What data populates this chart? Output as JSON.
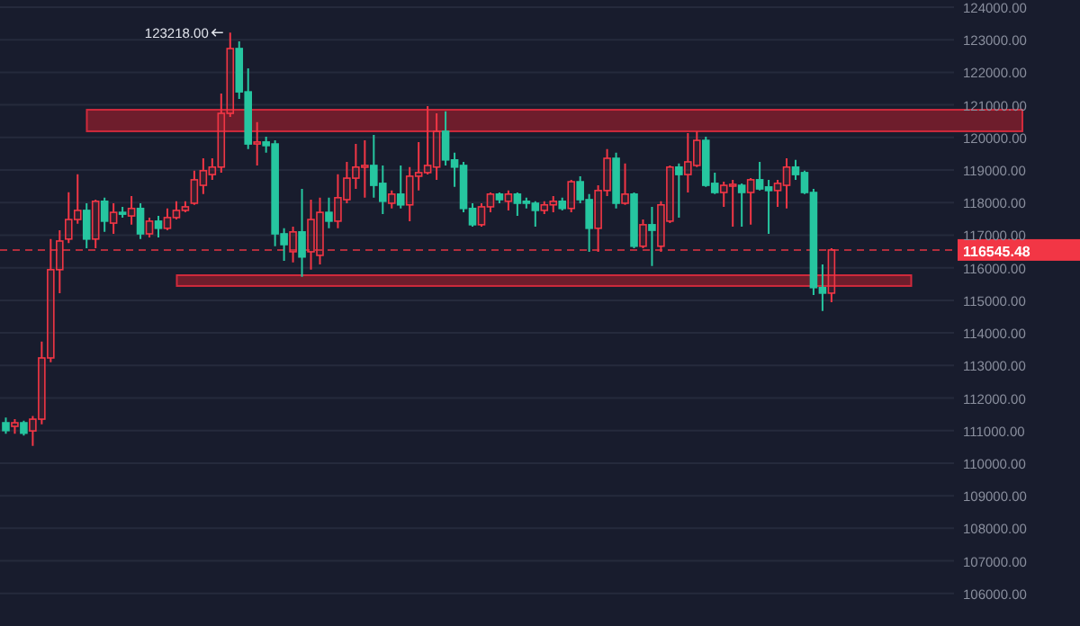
{
  "chart_data": {
    "type": "candlestick",
    "categories": [
      null,
      null,
      null,
      null,
      null,
      null,
      null,
      null,
      null,
      null,
      null,
      null,
      null,
      null,
      null,
      null,
      null,
      null,
      null,
      null,
      null,
      null,
      null,
      null,
      null,
      null,
      null,
      null,
      null,
      null,
      null,
      null,
      null,
      null,
      null,
      null,
      null,
      null,
      null,
      null,
      null,
      null,
      null,
      null,
      null,
      null,
      null,
      null,
      null,
      null,
      null,
      null,
      null,
      null,
      null,
      null,
      null,
      null,
      null,
      null,
      null,
      null,
      null,
      null,
      null,
      null,
      null,
      null,
      null,
      null,
      null,
      null,
      null,
      null,
      null,
      null,
      null,
      null,
      null,
      null,
      null,
      null,
      null,
      null,
      null,
      null,
      null,
      null,
      null,
      null,
      null,
      null,
      null,
      null,
      null,
      null,
      null,
      null,
      null,
      null,
      null,
      null,
      null,
      null,
      null,
      null
    ],
    "ohlc": [
      [
        111240,
        111400,
        110900,
        111000
      ],
      [
        111130,
        111350,
        110900,
        111240
      ],
      [
        111240,
        111300,
        110850,
        110920
      ],
      [
        110990,
        111450,
        110530,
        111350
      ],
      [
        111350,
        113730,
        111190,
        113230
      ],
      [
        113230,
        116880,
        113100,
        115940
      ],
      [
        115940,
        117150,
        115220,
        116820
      ],
      [
        116880,
        118320,
        116760,
        117480
      ],
      [
        117480,
        118870,
        117350,
        117760
      ],
      [
        117760,
        117980,
        116600,
        116880
      ],
      [
        116880,
        118090,
        116600,
        118040
      ],
      [
        118040,
        118150,
        117100,
        117430
      ],
      [
        117370,
        117980,
        117040,
        117700
      ],
      [
        117700,
        117870,
        117540,
        117650
      ],
      [
        117590,
        118200,
        117320,
        117820
      ],
      [
        117820,
        117980,
        116880,
        117040
      ],
      [
        117040,
        117540,
        116930,
        117430
      ],
      [
        117430,
        117590,
        116930,
        117210
      ],
      [
        117210,
        117820,
        117150,
        117540
      ],
      [
        117540,
        118040,
        117480,
        117760
      ],
      [
        117760,
        118040,
        117700,
        117870
      ],
      [
        117980,
        118980,
        117930,
        118700
      ],
      [
        118530,
        119360,
        118260,
        118980
      ],
      [
        118860,
        119360,
        118700,
        119090
      ],
      [
        119090,
        121350,
        118920,
        120740
      ],
      [
        120740,
        123218,
        120630,
        122730
      ],
      [
        122730,
        122950,
        121180,
        121400
      ],
      [
        121400,
        122120,
        119640,
        119800
      ],
      [
        119800,
        120470,
        119140,
        119860
      ],
      [
        119860,
        120020,
        119530,
        119750
      ],
      [
        119800,
        119910,
        116660,
        117040
      ],
      [
        117040,
        117210,
        116210,
        116710
      ],
      [
        116490,
        117260,
        116160,
        117100
      ],
      [
        117100,
        118420,
        115720,
        116330
      ],
      [
        116490,
        118090,
        115940,
        117480
      ],
      [
        116380,
        118150,
        116100,
        117700
      ],
      [
        117700,
        118150,
        117210,
        117430
      ],
      [
        117430,
        118870,
        117210,
        118150
      ],
      [
        118090,
        119250,
        117980,
        118750
      ],
      [
        118750,
        119800,
        118420,
        119090
      ],
      [
        119090,
        119910,
        118150,
        119140
      ],
      [
        119140,
        120080,
        118150,
        118530
      ],
      [
        118590,
        119140,
        117650,
        118040
      ],
      [
        117980,
        118370,
        117820,
        118260
      ],
      [
        118260,
        119140,
        117820,
        117930
      ],
      [
        117930,
        119090,
        117430,
        118810
      ],
      [
        118810,
        119860,
        118370,
        118920
      ],
      [
        118920,
        120960,
        118860,
        119140
      ],
      [
        119090,
        120740,
        118700,
        120190
      ],
      [
        120190,
        120800,
        119140,
        119310
      ],
      [
        119310,
        119530,
        118480,
        119090
      ],
      [
        119140,
        119250,
        117700,
        117820
      ],
      [
        117820,
        117980,
        117260,
        117320
      ],
      [
        117320,
        117980,
        117260,
        117870
      ],
      [
        117870,
        118310,
        117700,
        118260
      ],
      [
        118260,
        118310,
        117980,
        118090
      ],
      [
        118040,
        118370,
        117760,
        118260
      ],
      [
        118260,
        118310,
        117590,
        117980
      ],
      [
        118040,
        118150,
        117820,
        117980
      ],
      [
        117980,
        118040,
        117260,
        117760
      ],
      [
        117760,
        118040,
        117650,
        117930
      ],
      [
        117930,
        118200,
        117700,
        118040
      ],
      [
        118040,
        118150,
        117760,
        117820
      ],
      [
        117820,
        118700,
        117700,
        118640
      ],
      [
        118640,
        118810,
        117980,
        118090
      ],
      [
        118090,
        118260,
        116490,
        117210
      ],
      [
        117210,
        118530,
        116490,
        118370
      ],
      [
        118370,
        119640,
        118200,
        119360
      ],
      [
        119360,
        119530,
        117820,
        117980
      ],
      [
        117980,
        119200,
        117930,
        118260
      ],
      [
        118260,
        118310,
        116600,
        116660
      ],
      [
        116660,
        117480,
        116600,
        117320
      ],
      [
        117320,
        117870,
        116050,
        117150
      ],
      [
        116660,
        118040,
        116490,
        117930
      ],
      [
        117430,
        119140,
        117370,
        119090
      ],
      [
        119090,
        119200,
        117540,
        118860
      ],
      [
        118860,
        120130,
        118310,
        119250
      ],
      [
        119140,
        120190,
        119090,
        119910
      ],
      [
        119910,
        120020,
        118480,
        118530
      ],
      [
        118590,
        118920,
        118260,
        118310
      ],
      [
        118310,
        118640,
        117870,
        118530
      ],
      [
        118530,
        118700,
        117260,
        118560
      ],
      [
        118530,
        118590,
        117260,
        118310
      ],
      [
        118310,
        118750,
        117320,
        118700
      ],
      [
        118700,
        119250,
        118370,
        118420
      ],
      [
        118480,
        118700,
        117040,
        118370
      ],
      [
        118370,
        118700,
        117870,
        118590
      ],
      [
        118530,
        119360,
        117820,
        119090
      ],
      [
        119090,
        119310,
        118700,
        118860
      ],
      [
        118920,
        118980,
        118260,
        118310
      ],
      [
        118310,
        118420,
        115160,
        115390
      ],
      [
        115390,
        116100,
        114670,
        115220
      ],
      [
        115220,
        116600,
        114940,
        116545
      ],
      null,
      null,
      null,
      null,
      null,
      null,
      null,
      null,
      null,
      null,
      null,
      null,
      null
    ],
    "colors": [
      "#26c6a0",
      "#f23645",
      "#26c6a0",
      "#f23645",
      "#f23645",
      "#f23645",
      "#f23645",
      "#f23645",
      "#f23645",
      "#26c6a0",
      "#f23645",
      "#26c6a0",
      "#f23645",
      "#26c6a0",
      "#f23645",
      "#26c6a0",
      "#f23645",
      "#26c6a0",
      "#f23645",
      "#f23645",
      "#f23645",
      "#f23645",
      "#f23645",
      "#f23645",
      "#f23645",
      "#f23645",
      "#26c6a0",
      "#26c6a0",
      "#f23645",
      "#26c6a0",
      "#26c6a0",
      "#26c6a0",
      "#f23645",
      "#26c6a0",
      "#f23645",
      "#f23645",
      "#26c6a0",
      "#f23645",
      "#f23645",
      "#f23645",
      "#f23645",
      "#26c6a0",
      "#26c6a0",
      "#f23645",
      "#26c6a0",
      "#f23645",
      "#f23645",
      "#f23645",
      "#f23645",
      "#26c6a0",
      "#26c6a0",
      "#26c6a0",
      "#26c6a0",
      "#f23645",
      "#f23645",
      "#26c6a0",
      "#f23645",
      "#26c6a0",
      "#26c6a0",
      "#26c6a0",
      "#f23645",
      "#f23645",
      "#26c6a0",
      "#f23645",
      "#26c6a0",
      "#26c6a0",
      "#f23645",
      "#f23645",
      "#26c6a0",
      "#f23645",
      "#26c6a0",
      "#f23645",
      "#26c6a0",
      "#f23645",
      "#f23645",
      "#26c6a0",
      "#f23645",
      "#f23645",
      "#26c6a0",
      "#26c6a0",
      "#f23645",
      "#f23645",
      "#26c6a0",
      "#f23645",
      "#26c6a0",
      "#26c6a0",
      "#f23645",
      "#f23645",
      "#26c6a0",
      "#26c6a0",
      "#26c6a0",
      "#26c6a0",
      "#f23645",
      null,
      null,
      null,
      null,
      null,
      null,
      null,
      null,
      null,
      null,
      null,
      null,
      null
    ],
    "ylim": [
      105000,
      124220
    ],
    "yticks": [
      {
        "value": 106000,
        "label": "106000.00"
      },
      {
        "value": 107000,
        "label": "107000.00"
      },
      {
        "value": 108000,
        "label": "108000.00"
      },
      {
        "value": 109000,
        "label": "109000.00"
      },
      {
        "value": 110000,
        "label": "110000.00"
      },
      {
        "value": 111000,
        "label": "111000.00"
      },
      {
        "value": 112000,
        "label": "112000.00"
      },
      {
        "value": 113000,
        "label": "113000.00"
      },
      {
        "value": 114000,
        "label": "114000.00"
      },
      {
        "value": 115000,
        "label": "115000.00"
      },
      {
        "value": 116000,
        "label": "116000.00"
      },
      {
        "value": 117000,
        "label": "117000.00"
      },
      {
        "value": 118000,
        "label": "118000.00"
      },
      {
        "value": 119000,
        "label": "119000.00"
      },
      {
        "value": 120000,
        "label": "120000.00"
      },
      {
        "value": 121000,
        "label": "121000.00"
      },
      {
        "value": 122000,
        "label": "122000.00"
      },
      {
        "value": 123000,
        "label": "123000.00"
      },
      {
        "value": 124000,
        "label": "124000.00"
      }
    ],
    "grid": "y",
    "tick_labels": "y",
    "ref_lines": [
      {
        "axis": "y",
        "value": 116545.48,
        "label": "116545.48",
        "color": "#f23645",
        "line_style": "dashed"
      }
    ],
    "bands": [
      {
        "axis": "y",
        "from": 120190,
        "to": 120850,
        "color": "#8b1e2c"
      },
      {
        "axis": "y",
        "from": 115440,
        "to": 115770,
        "color": "#8b1e2c"
      }
    ],
    "annotations": [
      "123218.00"
    ]
  }
}
